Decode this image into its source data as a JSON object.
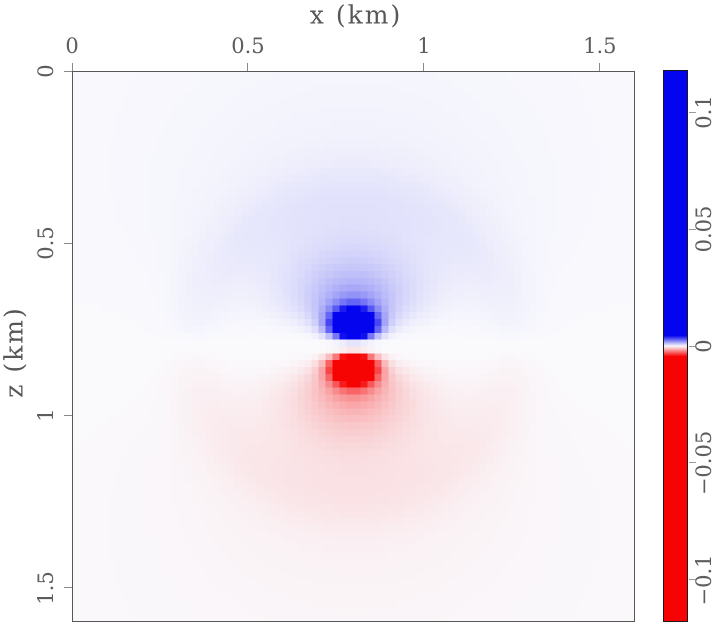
{
  "chart_data": {
    "type": "heatmap",
    "title": "",
    "xlabel": "x (km)",
    "ylabel": "z (km)",
    "x_range": [
      0,
      1.6
    ],
    "z_range": [
      0,
      1.6
    ],
    "x_ticks": [
      {
        "v": 0,
        "label": "0"
      },
      {
        "v": 0.5,
        "label": "0.5"
      },
      {
        "v": 1,
        "label": "1"
      },
      {
        "v": 1.5,
        "label": "1.5"
      }
    ],
    "z_ticks": [
      {
        "v": 0,
        "label": "0"
      },
      {
        "v": 0.5,
        "label": "0.5"
      },
      {
        "v": 1,
        "label": "1"
      },
      {
        "v": 1.5,
        "label": "1.5"
      }
    ],
    "colorbar": {
      "vmax": 0.118,
      "vmin": -0.118,
      "ticks": [
        {
          "v": 0.1,
          "label": "0.1"
        },
        {
          "v": 0.05,
          "label": "0.05"
        },
        {
          "v": 0,
          "label": "0"
        },
        {
          "v": -0.05,
          "label": "−0.05"
        },
        {
          "v": -0.1,
          "label": "−0.1"
        }
      ],
      "positive_color": "#0404ee",
      "negative_color": "#f60303",
      "zero_color": "#fafafd"
    },
    "field_model": {
      "description": "vertical dipole: blue lobe above, red lobe below a white zero line at z0",
      "x0": 0.8,
      "z0": 0.8,
      "grid": [
        80,
        80
      ],
      "near_amp": 2.2,
      "near_sigma2": 0.003,
      "far_amp": 6e-05,
      "far_eps": 0.0008,
      "line_damp": 0.0096,
      "ring_amp": 0.00015,
      "ring_r": 0.45,
      "ring_sigma2": 0.008,
      "ring_fade": 0.002,
      "sat_threshold": 0.0045
    }
  }
}
